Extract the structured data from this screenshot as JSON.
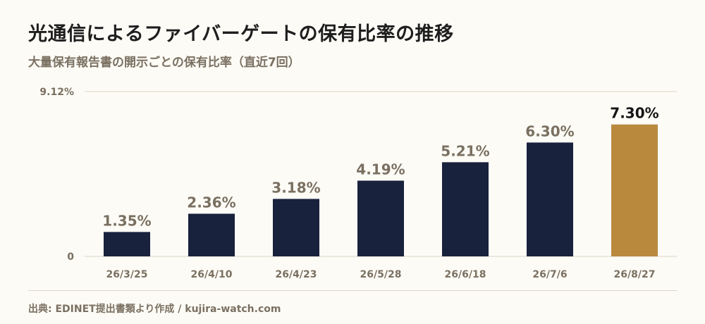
{
  "header": {
    "title": "光通信によるファイバーゲートの保有比率の推移",
    "subtitle": "大量保有報告書の開示ごとの保有比率（直近7回）"
  },
  "footer": {
    "source": "出典: EDINET提出書類より作成 / kujira-watch.com"
  },
  "colors": {
    "bar": "#18223d",
    "highlight": "#b98a3e",
    "label": "#7a7061",
    "highlight_label": "#151515",
    "grid": "#ddd6c6"
  },
  "chart_data": {
    "type": "bar",
    "categories": [
      "26/3/25",
      "26/4/10",
      "26/4/23",
      "26/5/28",
      "26/6/18",
      "26/7/6",
      "26/8/27"
    ],
    "values": [
      1.35,
      2.36,
      3.18,
      4.19,
      5.21,
      6.3,
      7.3
    ],
    "data_labels": [
      "1.35%",
      "2.36%",
      "3.18%",
      "4.19%",
      "5.21%",
      "6.30%",
      "7.30%"
    ],
    "highlight_index": 6,
    "ylim": [
      0,
      9.12
    ],
    "ytick_labels": [
      "0",
      "9.12%"
    ],
    "grid": true,
    "legend": "none"
  }
}
